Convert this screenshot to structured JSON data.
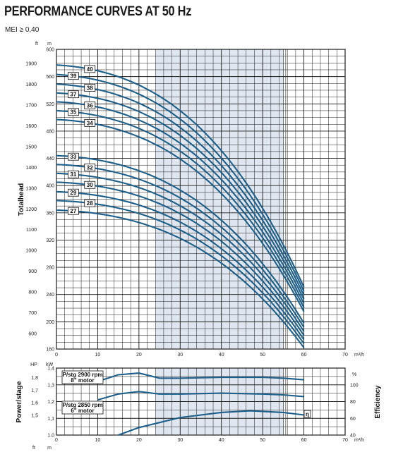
{
  "header": {
    "title": "PERFORMANCE CURVES AT 50 Hz",
    "subtitle": "MEI ≥ 0,40"
  },
  "colors": {
    "curve": "#1d5f8a",
    "grid": "#1a1a1a",
    "shade": "#dfe6ef"
  },
  "chart_data": [
    {
      "type": "line",
      "title": "Totalhead",
      "xlabel": "m³/h",
      "ylabel": "Totalhead",
      "y_units_left": "ft",
      "y_units_right": "m",
      "xlim": [
        0,
        70
      ],
      "ylim": [
        160,
        600
      ],
      "x_ticks": [
        "0",
        "10",
        "20",
        "30",
        "40",
        "50",
        "60",
        "70"
      ],
      "y_ticks_m": [
        "160",
        "200",
        "240",
        "280",
        "320",
        "360",
        "400",
        "440",
        "480",
        "520",
        "560",
        "600"
      ],
      "y_ticks_ft": [
        "600",
        "700",
        "800",
        "900",
        "1000",
        "1100",
        "1200",
        "1300",
        "1400",
        "1500",
        "1600",
        "1700",
        "1800",
        "1900"
      ],
      "recommended_range_shaded": [
        24,
        55
      ],
      "shutoff_flow": 0,
      "max_flow": 60,
      "series": [
        {
          "name": "27",
          "shutoff_head": 364,
          "end_head": 162
        },
        {
          "name": "28",
          "shutoff_head": 378,
          "end_head": 168
        },
        {
          "name": "29",
          "shutoff_head": 391,
          "end_head": 174
        },
        {
          "name": "30",
          "shutoff_head": 405,
          "end_head": 180
        },
        {
          "name": "31",
          "shutoff_head": 418,
          "end_head": 186
        },
        {
          "name": "32",
          "shutoff_head": 431,
          "end_head": 192
        },
        {
          "name": "33",
          "shutoff_head": 444,
          "end_head": 198
        },
        {
          "name": "34",
          "shutoff_head": 497,
          "end_head": 215
        },
        {
          "name": "35",
          "shutoff_head": 510,
          "end_head": 221
        },
        {
          "name": "36",
          "shutoff_head": 523,
          "end_head": 227
        },
        {
          "name": "37",
          "shutoff_head": 536,
          "end_head": 233
        },
        {
          "name": "38",
          "shutoff_head": 549,
          "end_head": 239
        },
        {
          "name": "39",
          "shutoff_head": 563,
          "end_head": 245
        },
        {
          "name": "40",
          "shutoff_head": 577,
          "end_head": 251
        }
      ]
    },
    {
      "type": "line",
      "title": "Power/stage",
      "xlabel": "m³/h",
      "ylabel": "Power/stage",
      "ylabel_right": "Efficiency",
      "y_units_left": "kW",
      "y_units_left_hp": "HP",
      "y_units_right": "%",
      "xlim": [
        0,
        60
      ],
      "ylim": [
        1.0,
        1.4
      ],
      "x_ticks": [
        "0",
        "10",
        "20",
        "30",
        "40",
        "50",
        "60",
        "70"
      ],
      "y_ticks_kw": [
        "1,0",
        "1,1",
        "1,2",
        "1,3",
        "1,4"
      ],
      "y_ticks_hp": [
        "1,5",
        "1,6",
        "1,7",
        "1,8"
      ],
      "y_ticks_eff": [
        "40",
        "60",
        "80",
        "100"
      ],
      "series": [
        {
          "name": "P/stg 2900 rpm 8\" motor",
          "x": [
            10,
            15,
            20,
            25,
            30,
            40,
            50,
            55,
            60
          ],
          "values": [
            1.32,
            1.36,
            1.37,
            1.34,
            1.34,
            1.345,
            1.345,
            1.34,
            1.33
          ]
        },
        {
          "name": "P/stg 2850 rpm 6\" motor",
          "x": [
            10,
            15,
            20,
            25,
            30,
            40,
            50,
            55,
            60
          ],
          "values": [
            1.21,
            1.245,
            1.26,
            1.245,
            1.245,
            1.25,
            1.245,
            1.24,
            1.23
          ]
        },
        {
          "name": "η",
          "x": [
            15,
            20,
            30,
            40,
            47,
            55,
            60
          ],
          "values": [
            40,
            49,
            61,
            67,
            69,
            67,
            64
          ]
        }
      ],
      "motor_labels": [
        "P/stg 2900 rpm",
        "8\" motor",
        "P/stg 2850 rpm",
        "6\" motor"
      ],
      "eta_label": "η"
    }
  ],
  "units_row": {
    "ft": "ft",
    "m": "m",
    "hp": "HP",
    "kw": "kW",
    "pct": "%",
    "flow": "m³/h"
  }
}
